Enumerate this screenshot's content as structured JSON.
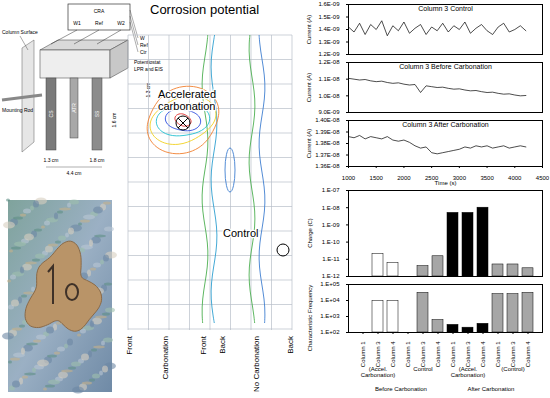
{
  "chart_data": [
    {
      "type": "line",
      "title": "Column 3 Control",
      "ylabel": "Current (A)",
      "color": "#000000",
      "tick_labels": "y",
      "x": [
        1000,
        1100,
        1200,
        1300,
        1400,
        1500,
        1600,
        1700,
        1800,
        1900,
        2000,
        2100,
        2200,
        2300,
        2400,
        2500,
        2600,
        2700,
        2800,
        2900,
        3000,
        3100,
        3200,
        3300,
        3400,
        3500,
        3600,
        3700,
        3800,
        3900,
        4000,
        4100,
        4200
      ],
      "values": [
        1.42e-09,
        1.38e-09,
        1.45e-09,
        1.36e-09,
        1.44e-09,
        1.4e-09,
        1.47e-09,
        1.35e-09,
        1.43e-09,
        1.39e-09,
        1.46e-09,
        1.37e-09,
        1.41e-09,
        1.44e-09,
        1.36e-09,
        1.42e-09,
        1.39e-09,
        1.45e-09,
        1.38e-09,
        1.43e-09,
        1.4e-09,
        1.46e-09,
        1.37e-09,
        1.41e-09,
        1.44e-09,
        1.39e-09,
        1.36e-09,
        1.42e-09,
        1.45e-09,
        1.38e-09,
        1.4e-09,
        1.43e-09,
        1.39e-09
      ],
      "xlim": [
        1000,
        4500
      ],
      "xticks": [
        1000,
        1500,
        2000,
        2500,
        3000,
        3500,
        4000,
        4500
      ],
      "ylim": [
        1.2e-09,
        1.6e-09
      ],
      "yticks": [
        {
          "value": 1.2e-09,
          "label": "1.2E-09"
        },
        {
          "value": 1.3e-09,
          "label": "1.3E-09"
        },
        {
          "value": 1.4e-09,
          "label": "1.4E-09"
        },
        {
          "value": 1.5e-09,
          "label": "1.5E-09"
        },
        {
          "value": 1.6e-09,
          "label": "1.6E-09"
        }
      ]
    },
    {
      "type": "line",
      "title": "Column 3 Before Carbonation",
      "ylabel": "Current (A)",
      "color": "#000000",
      "tick_labels": "y",
      "x": [
        1000,
        1100,
        1200,
        1300,
        1400,
        1500,
        1600,
        1700,
        1800,
        1900,
        2000,
        2100,
        2200,
        2300,
        2400,
        2500,
        2600,
        2700,
        2800,
        2900,
        3000,
        3100,
        3200,
        3300,
        3400,
        3500,
        3600,
        3700,
        3800,
        3900,
        4000,
        4100,
        4200
      ],
      "values": [
        1.105e-08,
        1.1e-08,
        1.095e-08,
        1.098e-08,
        1.09e-08,
        1.085e-08,
        1.088e-08,
        1.08e-08,
        1.075e-08,
        1.078e-08,
        1.07e-08,
        1.065e-08,
        1.068e-08,
        1.02e-08,
        1.06e-08,
        1.055e-08,
        1.05e-08,
        1.052e-08,
        1.045e-08,
        1.04e-08,
        1.042e-08,
        1.035e-08,
        1.03e-08,
        1.032e-08,
        1.025e-08,
        1.02e-08,
        1.022e-08,
        1.015e-08,
        1.01e-08,
        1.012e-08,
        1.005e-08,
        1e-08,
        1.002e-08
      ],
      "xlim": [
        1000,
        4500
      ],
      "xticks": [
        1000,
        1500,
        2000,
        2500,
        3000,
        3500,
        4000,
        4500
      ],
      "ylim": [
        9e-09,
        1.2e-08
      ],
      "yticks": [
        {
          "value": 9e-09,
          "label": "9.0E-09"
        },
        {
          "value": 1e-08,
          "label": "1.0E-08"
        },
        {
          "value": 1.1e-08,
          "label": "1.1E-08"
        },
        {
          "value": 1.2e-08,
          "label": "1.2E-08"
        }
      ]
    },
    {
      "type": "line",
      "title": "Column 3 After Carbonation",
      "ylabel": "Current (A)",
      "xlabel": "Time (s)",
      "color": "#000000",
      "x": [
        1000,
        1100,
        1200,
        1300,
        1400,
        1500,
        1600,
        1700,
        1800,
        1900,
        2000,
        2100,
        2200,
        2300,
        2400,
        2500,
        2600,
        2700,
        2800,
        2900,
        3000,
        3100,
        3200,
        3300,
        3400,
        3500,
        3600,
        3700,
        3800,
        3900,
        4000,
        4100,
        4200
      ],
      "values": [
        1.386e-08,
        1.385e-08,
        1.387e-08,
        1.384e-08,
        1.386e-08,
        1.385e-08,
        1.384e-08,
        1.386e-08,
        1.383e-08,
        1.382e-08,
        1.383e-08,
        1.381e-08,
        1.378e-08,
        1.376e-08,
        1.377e-08,
        1.372e-08,
        1.371e-08,
        1.372e-08,
        1.373e-08,
        1.374e-08,
        1.375e-08,
        1.377e-08,
        1.376e-08,
        1.378e-08,
        1.377e-08,
        1.378e-08,
        1.376e-08,
        1.377e-08,
        1.378e-08,
        1.376e-08,
        1.377e-08,
        1.378e-08,
        1.377e-08
      ],
      "xlim": [
        1000,
        4500
      ],
      "xticks": [
        1000,
        1500,
        2000,
        2500,
        3000,
        3500,
        4000,
        4500
      ],
      "ylim": [
        1.36e-08,
        1.4e-08
      ],
      "yticks": [
        {
          "value": 1.36e-08,
          "label": "1.36E-08"
        },
        {
          "value": 1.37e-08,
          "label": "1.37E-08"
        },
        {
          "value": 1.38e-08,
          "label": "1.38E-08"
        },
        {
          "value": 1.39e-08,
          "label": "1.39E-08"
        },
        {
          "value": 1.4e-08,
          "label": "1.40E-08"
        }
      ]
    },
    {
      "type": "bar",
      "ylabel": "Charge (C)",
      "log": "y",
      "tick_labels": "y",
      "categories": [
        "Column 1",
        "Column 3",
        "Column 4",
        "Column 1",
        "Column 3",
        "Column 4",
        "Column 1",
        "Column 3",
        "Column 4",
        "Column 1",
        "Column 3",
        "Column 4"
      ],
      "values": [
        null,
        2e-11,
        6e-12,
        null,
        4e-12,
        1.5e-11,
        5e-09,
        5e-09,
        1e-08,
        5e-12,
        5e-12,
        3e-12
      ],
      "colors": [
        "#ffffff",
        "#ffffff",
        "#ffffff",
        "#a6a6a6",
        "#a6a6a6",
        "#a6a6a6",
        "#000000",
        "#000000",
        "#000000",
        "#a6a6a6",
        "#a6a6a6",
        "#a6a6a6"
      ],
      "ylim": [
        1e-12,
        1e-07
      ],
      "yticks": [
        {
          "value": 1e-12,
          "label": "1.E-12"
        },
        {
          "value": 1e-11,
          "label": "1.E-11"
        },
        {
          "value": 1e-10,
          "label": "1.E-10"
        },
        {
          "value": 1e-09,
          "label": "1.E-09"
        },
        {
          "value": 1e-08,
          "label": "1.E-08"
        },
        {
          "value": 1e-07,
          "label": "1.E-07"
        }
      ]
    },
    {
      "type": "bar",
      "ylabel": "Characteristic Frequency",
      "log": "y",
      "categories": [
        "Column 1",
        "Column 3",
        "Column 4",
        "Column 1",
        "Column 3",
        "Column 4",
        "Column 1",
        "Column 3",
        "Column 4",
        "Column 1",
        "Column 3",
        "Column 4"
      ],
      "values": [
        null,
        9000,
        9000,
        null,
        30000,
        600,
        300,
        200,
        350,
        25000,
        25000,
        30000
      ],
      "colors": [
        "#ffffff",
        "#ffffff",
        "#ffffff",
        "#a6a6a6",
        "#a6a6a6",
        "#a6a6a6",
        "#000000",
        "#000000",
        "#000000",
        "#a6a6a6",
        "#a6a6a6",
        "#a6a6a6"
      ],
      "ylim": [
        100,
        100000
      ],
      "yticks": [
        {
          "value": 100,
          "label": "1.E+02"
        },
        {
          "value": 1000,
          "label": "1.E+03"
        },
        {
          "value": 10000,
          "label": "1.E+04"
        },
        {
          "value": 100000,
          "label": "1.E+05"
        }
      ],
      "group_labels": [
        "(Accel. Carbonation)",
        "Control",
        "(Accel. Carbonation)",
        "(Control)"
      ],
      "outer_group_labels": [
        "Before Carbonation",
        "After Carbonation"
      ]
    }
  ],
  "diagram": {
    "cra_box": {
      "label": "CRA",
      "terminals": [
        "W1",
        "Ref",
        "W2"
      ]
    },
    "potentiostat": {
      "leads": [
        "W",
        "Ref",
        "Ctr"
      ],
      "label": "Potentiostat",
      "subtitle": "LPR and EIS"
    },
    "column_surface": "Column Surface",
    "mounting_rod": "Mounting Rod",
    "electrodes": [
      "CS",
      "ATR",
      "SS"
    ],
    "dimensions": [
      "1.3 cm",
      "1.3 cm",
      "4.4 cm",
      "1.8 cm",
      "1.6 cm"
    ]
  },
  "contour_map": {
    "title": "Corrosion potential",
    "annotations": [
      "Accelerated carbonation",
      "Control"
    ],
    "axis_labels": [
      "Front",
      "Carbonation",
      "Front",
      "Back",
      "No Carbonation",
      "Back"
    ]
  }
}
